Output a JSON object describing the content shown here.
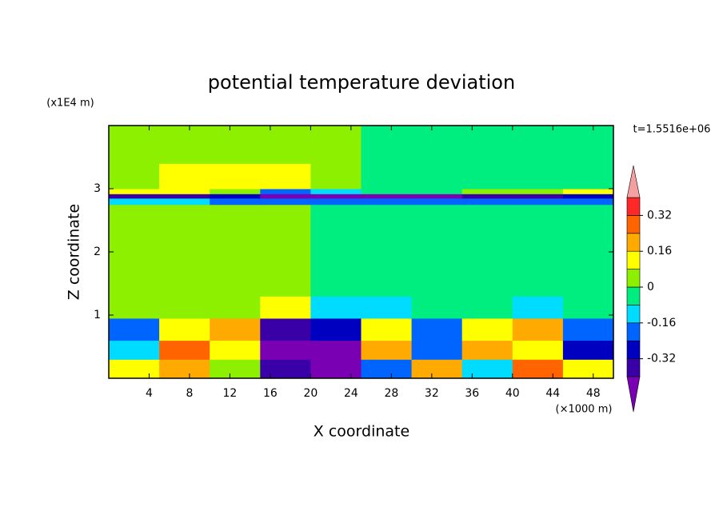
{
  "chart_data": {
    "type": "contour",
    "title": "potential temperature deviation",
    "x_label": "X coordinate",
    "y_label": "Z coordinate",
    "x_unit": "(×1000 m)",
    "y_unit": "(x1E4 m)",
    "annotation": "t=1.5516e+06",
    "xlim": [
      0,
      50
    ],
    "ylim": [
      0,
      4
    ],
    "xticks": [
      4,
      8,
      12,
      16,
      20,
      24,
      28,
      32,
      36,
      40,
      44,
      48
    ],
    "yticks": [
      1,
      2,
      3
    ],
    "x_edges": [
      0,
      5,
      10,
      15,
      20,
      25,
      30,
      35,
      40,
      45,
      50
    ],
    "z_edges": [
      0,
      0.3,
      0.6,
      0.95,
      1.3,
      2.0,
      2.75,
      2.85,
      2.92,
      3.0,
      3.4,
      4.0
    ],
    "values": [
      [
        0.12,
        0.2,
        0.04,
        -0.36,
        -0.44,
        -0.2,
        0.2,
        -0.12,
        0.28,
        0.12
      ],
      [
        -0.12,
        0.28,
        0.12,
        -0.44,
        -0.44,
        0.2,
        -0.2,
        0.2,
        0.12,
        -0.28
      ],
      [
        -0.2,
        0.12,
        0.2,
        -0.36,
        -0.28,
        0.12,
        -0.2,
        0.12,
        0.2,
        -0.2
      ],
      [
        0.04,
        0.04,
        0.04,
        0.12,
        -0.12,
        -0.12,
        -0.04,
        -0.04,
        -0.12,
        -0.04
      ],
      [
        0.04,
        0.04,
        0.04,
        0.04,
        -0.04,
        -0.04,
        -0.04,
        -0.04,
        -0.04,
        -0.04
      ],
      [
        0.04,
        0.04,
        0.04,
        0.04,
        -0.04,
        -0.04,
        -0.04,
        -0.04,
        -0.04,
        -0.04
      ],
      [
        -0.12,
        -0.12,
        -0.2,
        -0.2,
        -0.2,
        -0.2,
        -0.2,
        -0.2,
        -0.2,
        -0.2
      ],
      [
        -0.36,
        -0.36,
        -0.28,
        -0.44,
        -0.44,
        -0.44,
        -0.44,
        -0.36,
        -0.36,
        -0.28
      ],
      [
        0.12,
        0.12,
        0.04,
        -0.2,
        -0.12,
        -0.04,
        -0.04,
        0.04,
        0.04,
        0.12
      ],
      [
        0.04,
        0.12,
        0.12,
        0.12,
        0.04,
        -0.04,
        -0.04,
        -0.04,
        -0.04,
        -0.04
      ],
      [
        0.04,
        0.04,
        0.04,
        0.04,
        0.04,
        -0.04,
        -0.04,
        -0.04,
        -0.04,
        -0.04
      ]
    ],
    "levels": [
      -0.4,
      -0.32,
      -0.24,
      -0.16,
      -0.08,
      0,
      0.08,
      0.16,
      0.24,
      0.32,
      0.4
    ],
    "colors": [
      "#7a00b4",
      "#3a00a8",
      "#0000c0",
      "#0064ff",
      "#00dcff",
      "#00ee80",
      "#8cf000",
      "#ffff00",
      "#ffaa00",
      "#ff6400",
      "#ff2828",
      "#f5a0a0"
    ],
    "cbar_ticks": [
      0.32,
      0.16,
      0,
      -0.16,
      -0.32
    ]
  }
}
